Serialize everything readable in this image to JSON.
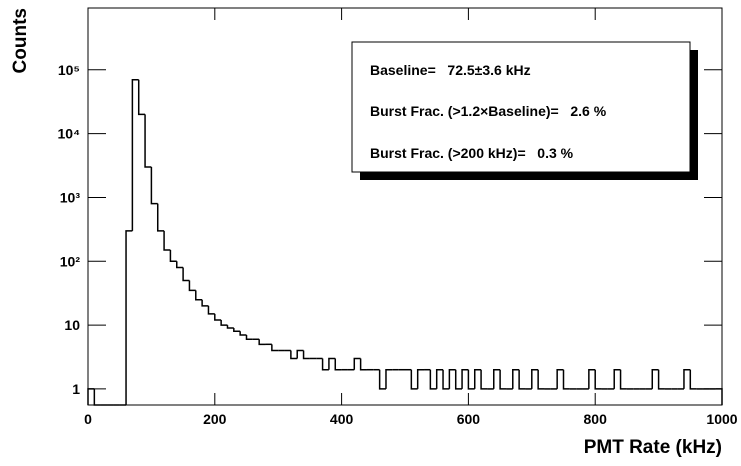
{
  "chart_data": {
    "type": "histogram",
    "x_label": "PMT Rate (kHz)",
    "y_label": "Counts",
    "annotations": [
      "Baseline=   72.5±3.6 kHz",
      "Burst Frac. (>1.2×Baseline)=   2.6 %",
      "Burst Frac. (>200 kHz)=   0.3 %"
    ],
    "log_y": true,
    "color": "#000000",
    "xlim": [
      0,
      1000
    ],
    "xticks": [
      0,
      200,
      400,
      600,
      800,
      1000
    ],
    "ylim": [
      0.56,
      930000
    ],
    "yticks": [
      1,
      10,
      {
        "value": 100,
        "label": "10²"
      },
      {
        "value": 1000,
        "label": "10³"
      },
      {
        "value": 10000,
        "label": "10⁴"
      },
      {
        "value": 100000,
        "label": "10⁵"
      }
    ],
    "bins": [
      0,
      10,
      20,
      30,
      40,
      50,
      60,
      70,
      80,
      90,
      100,
      110,
      120,
      130,
      140,
      150,
      160,
      170,
      180,
      190,
      200,
      210,
      220,
      230,
      240,
      250,
      260,
      270,
      280,
      290,
      300,
      310,
      320,
      330,
      340,
      350,
      360,
      370,
      380,
      390,
      400,
      410,
      420,
      430,
      440,
      450,
      460,
      470,
      480,
      490,
      500,
      510,
      520,
      530,
      540,
      550,
      560,
      570,
      580,
      590,
      600,
      610,
      620,
      630,
      640,
      650,
      660,
      670,
      680,
      690,
      700,
      710,
      720,
      730,
      740,
      750,
      760,
      770,
      780,
      790,
      800,
      810,
      820,
      830,
      840,
      850,
      860,
      870,
      880,
      890,
      900,
      910,
      920,
      930,
      940,
      950,
      960,
      970,
      980,
      990,
      1000
    ],
    "values": [
      1,
      0,
      0,
      0,
      0,
      0,
      300,
      70000,
      20000,
      3000,
      800,
      300,
      150,
      100,
      80,
      50,
      35,
      25,
      20,
      15,
      12,
      10,
      9,
      8,
      7,
      6,
      6,
      5,
      5,
      4,
      4,
      4,
      3,
      4,
      3,
      3,
      3,
      2,
      3,
      2,
      2,
      2,
      3,
      2,
      2,
      2,
      1,
      2,
      2,
      2,
      2,
      1,
      2,
      2,
      1,
      2,
      1,
      2,
      1,
      2,
      1,
      2,
      1,
      1,
      2,
      1,
      1,
      2,
      1,
      1,
      2,
      1,
      1,
      1,
      2,
      1,
      1,
      1,
      1,
      2,
      1,
      1,
      1,
      2,
      1,
      1,
      1,
      1,
      1,
      2,
      1,
      1,
      1,
      1,
      2,
      1,
      1,
      1,
      1,
      1
    ]
  }
}
